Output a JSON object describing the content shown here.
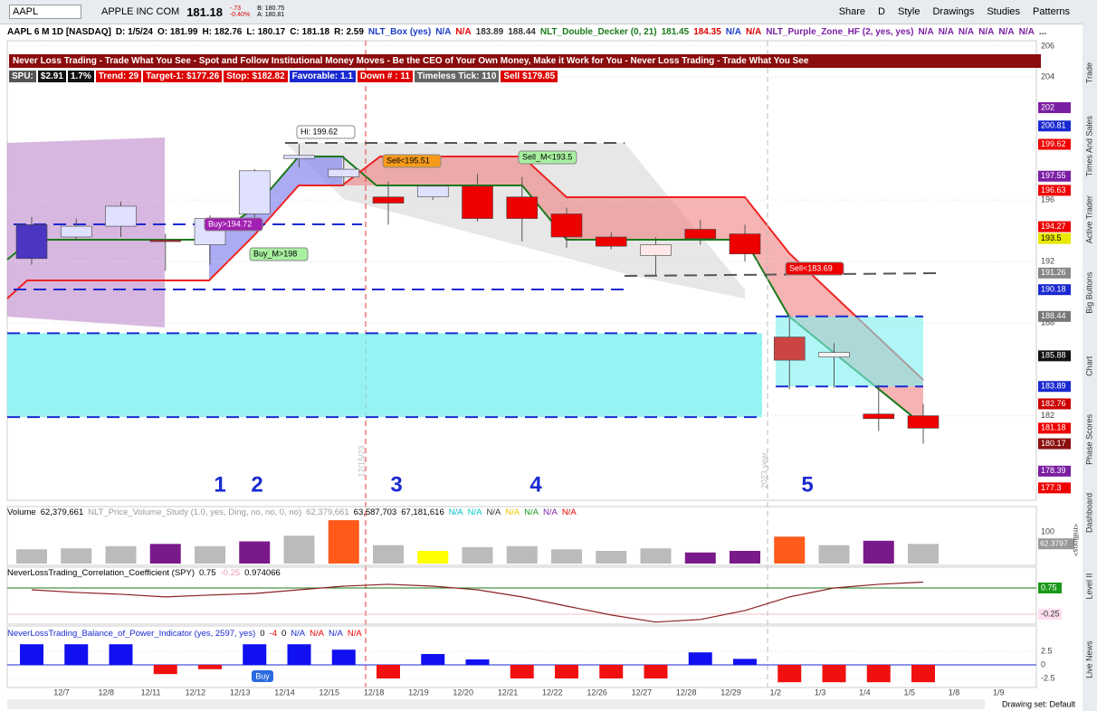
{
  "toolbar": {
    "symbol": "AAPL",
    "company": "APPLE INC COM",
    "last": "181.18",
    "change": "-.73",
    "change_pct": "-0.40%",
    "bid": "B: 180.75",
    "ask": "A: 180.81",
    "buttons": [
      "Share",
      "D",
      "Style",
      "Drawings",
      "Studies",
      "Patterns"
    ]
  },
  "info_bar": [
    {
      "text": "AAPL 6 M 1D [NASDAQ]",
      "color": "#000"
    },
    {
      "text": "D: 1/5/24",
      "color": "#000"
    },
    {
      "text": "O: 181.99",
      "color": "#000"
    },
    {
      "text": "H: 182.76",
      "color": "#000"
    },
    {
      "text": "L: 180.17",
      "color": "#000"
    },
    {
      "text": "C: 181.18",
      "color": "#000"
    },
    {
      "text": "R: 2.59",
      "color": "#000"
    },
    {
      "text": "NLT_Box (yes)",
      "color": "#1a3cc8"
    },
    {
      "text": "N/A",
      "color": "#1a3cc8"
    },
    {
      "text": "N/A",
      "color": "#d00"
    },
    {
      "text": "183.89",
      "color": "#333"
    },
    {
      "text": "188.44",
      "color": "#333"
    },
    {
      "text": "NLT_Double_Decker (0, 21)",
      "color": "#1a7a1a"
    },
    {
      "text": "181.45",
      "color": "#1a7a1a"
    },
    {
      "text": "184.35",
      "color": "#d00"
    },
    {
      "text": "N/A",
      "color": "#1a3cc8"
    },
    {
      "text": "N/A",
      "color": "#d00"
    },
    {
      "text": "NLT_Purple_Zone_HF (2, yes, yes)",
      "color": "#7b1fa2"
    },
    {
      "text": "N/A",
      "color": "#7b1fa2"
    },
    {
      "text": "N/A",
      "color": "#7b1fa2"
    },
    {
      "text": "N/A",
      "color": "#7b1fa2"
    },
    {
      "text": "N/A",
      "color": "#7b1fa2"
    },
    {
      "text": "N/A",
      "color": "#7b1fa2"
    },
    {
      "text": "N/A",
      "color": "#7b1fa2"
    },
    {
      "text": "...",
      "color": "#333"
    }
  ],
  "banner": "Never Loss Trading - Trade What You See - Spot and Follow Institutional Money Moves - Be the CEO of Your Own Money, Make it Work for You - Never Loss Trading - Trade What You See",
  "badges": [
    {
      "text": "SPU:",
      "bg": "#555"
    },
    {
      "text": "$2.91",
      "bg": "#111"
    },
    {
      "text": "1.7%",
      "bg": "#111"
    },
    {
      "text": "Trend: 29",
      "bg": "#d00"
    },
    {
      "text": "Target-1: $177.26",
      "bg": "#d00"
    },
    {
      "text": "Stop: $182.82",
      "bg": "#d00"
    },
    {
      "text": "Favorable: 1.1",
      "bg": "#1a2ad0"
    },
    {
      "text": "Down # : 11",
      "bg": "#d00"
    },
    {
      "text": "Timeless Tick: 110",
      "bg": "#666"
    },
    {
      "text": "Sell $179.85",
      "bg": "#d00"
    }
  ],
  "price_panel": {
    "ylim": [
      176.5,
      206.35
    ],
    "yticks": [
      206,
      204,
      196,
      192,
      188,
      182
    ],
    "tags": [
      {
        "value": 202,
        "color": "#7b1fa2"
      },
      {
        "value": 200.81,
        "color": "#1a2ad0"
      },
      {
        "value": 199.62,
        "color": "#e00"
      },
      {
        "value": 197.55,
        "color": "#7b1fa2"
      },
      {
        "value": 196.63,
        "color": "#e00"
      },
      {
        "value": 194.27,
        "color": "#e00"
      },
      {
        "value": 193.5,
        "color": "#e8e800"
      },
      {
        "value": 191.26,
        "color": "#888"
      },
      {
        "value": 190.18,
        "color": "#1a2ad0"
      },
      {
        "value": 188.44,
        "color": "#777"
      },
      {
        "value": 185.88,
        "color": "#111"
      },
      {
        "value": 183.89,
        "color": "#1a2ad0"
      },
      {
        "value": 182.76,
        "color": "#c00"
      },
      {
        "value": 181.18,
        "color": "#e00"
      },
      {
        "value": 180.17,
        "color": "#8b1010"
      },
      {
        "value": 178.39,
        "color": "#7b1fa2"
      },
      {
        "value": 177.3,
        "color": "#e00"
      }
    ],
    "candles": {
      "open": [
        194.4,
        193.6,
        194.3,
        193.4,
        193.1,
        195.1,
        198.7,
        197.5,
        196.2,
        196.2,
        196.9,
        196.2,
        195.1,
        193.6,
        192.4,
        194.1,
        193.8,
        187.1,
        186.1,
        182.1,
        181.99
      ],
      "high": [
        194.9,
        194.8,
        195.9,
        193.8,
        195.0,
        198.0,
        199.62,
        198.9,
        197.2,
        196.9,
        197.7,
        197.5,
        195.5,
        193.9,
        193.6,
        194.7,
        194.4,
        188.4,
        186.7,
        184.0,
        182.76
      ],
      "low": [
        191.8,
        193.4,
        193.6,
        191.4,
        191.8,
        194.5,
        198.1,
        196.9,
        194.4,
        196.0,
        194.6,
        193.3,
        192.9,
        192.8,
        191.1,
        193.1,
        192.0,
        183.7,
        183.8,
        181.0,
        180.17
      ],
      "close": [
        192.2,
        194.3,
        195.6,
        193.3,
        194.8,
        197.9,
        198.9,
        198.0,
        195.8,
        196.9,
        194.8,
        194.8,
        193.6,
        193.0,
        193.1,
        193.5,
        192.5,
        185.6,
        185.8,
        181.8,
        181.18
      ],
      "colors": [
        "#4a36c0",
        "#e0e0ff",
        "#e0e0ff",
        "#b22",
        "#e0e0ff",
        "#e0e0ff",
        "#e0e0ff",
        "#e0e0ff",
        "#e00",
        "#e0e0ff",
        "#e00",
        "#e00",
        "#e00",
        "#e00",
        "#ffe8e8",
        "#e00",
        "#e00",
        "#c44",
        "#f2f2f2",
        "#e00",
        "#e00"
      ]
    },
    "zones": [
      {
        "low": 181.9,
        "high": 187.35
      },
      {
        "low": 183.89,
        "high": 188.44
      }
    ],
    "x_labels": [
      "12/7",
      "12/8",
      "12/11",
      "12/12",
      "12/13",
      "12/14",
      "12/15",
      "12/18",
      "12/19",
      "12/20",
      "12/21",
      "12/22",
      "12/26",
      "12/27",
      "12/28",
      "12/29",
      "1/2",
      "1/3",
      "1/4",
      "1/5",
      "1/8",
      "1/9"
    ],
    "annotations": [
      "Hi: 199.62",
      "Sell<195.51",
      "Sell_M<193.5",
      "Buy>194.72",
      "Buy_M>198",
      "Sell<183.69"
    ],
    "numbers": [
      "1",
      "2",
      "3",
      "4",
      "5"
    ],
    "markers": [
      "12/15/23",
      "2023 year"
    ]
  },
  "volume_panel": {
    "header": [
      {
        "text": "Volume",
        "color": "#000"
      },
      {
        "text": "62,379,661",
        "color": "#000"
      },
      {
        "text": "NLT_Price_Volume_Study (1.0, yes, Ding, no, no, 0, no)",
        "color": "#999"
      },
      {
        "text": "62,379,661",
        "color": "#999"
      },
      {
        "text": "63,587,703",
        "color": "#000"
      },
      {
        "text": "67,181,616",
        "color": "#000"
      },
      {
        "text": "N/A",
        "color": "#0bc"
      },
      {
        "text": "N/A",
        "color": "#0cc"
      },
      {
        "text": "N/A",
        "color": "#333"
      },
      {
        "text": "N/A",
        "color": "#e8c800"
      },
      {
        "text": "N/A",
        "color": "#1a9a1a"
      },
      {
        "text": "N/A",
        "color": "#7b1fa2"
      },
      {
        "text": "N/A",
        "color": "#e00"
      }
    ],
    "values": [
      45,
      48,
      55,
      62,
      55,
      70,
      88,
      137,
      58,
      40,
      52,
      55,
      45,
      40,
      48,
      35,
      40,
      85,
      58,
      72,
      62
    ],
    "colors": [
      "#bbb",
      "#bbb",
      "#bbb",
      "#7a1a8a",
      "#bbb",
      "#7a1a8a",
      "#bbb",
      "#ff5a1a",
      "#bbb",
      "#ffff00",
      "#bbb",
      "#bbb",
      "#bbb",
      "#bbb",
      "#bbb",
      "#7a1a8a",
      "#7a1a8a",
      "#ff5a1a",
      "#bbb",
      "#7a1a8a",
      "#bbb"
    ],
    "yticks": [
      100
    ],
    "last": 62.3797,
    "unit": "<millions>"
  },
  "corr_panel": {
    "header": [
      {
        "text": "NeverLossTrading_Correlation_Coefficient (SPY)",
        "color": "#000"
      },
      {
        "text": "0.75",
        "color": "#000"
      },
      {
        "text": "-0.25",
        "color": "#e9b"
      },
      {
        "text": "0.974066",
        "color": "#000"
      }
    ],
    "values": [
      0.68,
      0.58,
      0.51,
      0.41,
      0.48,
      0.54,
      0.68,
      0.82,
      0.89,
      0.82,
      0.68,
      0.41,
      0.06,
      -0.28,
      -0.55,
      -0.45,
      -0.11,
      0.41,
      0.75,
      0.89,
      0.974066
    ],
    "levels": [
      0.75,
      -0.25
    ]
  },
  "bop_panel": {
    "header": [
      {
        "text": "NeverLossTrading_Balance_of_Power_Indicator (yes, 2597, yes)",
        "color": "#1a2ad0"
      },
      {
        "text": "0",
        "color": "#000"
      },
      {
        "text": "-4",
        "color": "#e00"
      },
      {
        "text": "0",
        "color": "#000"
      },
      {
        "text": "N/A",
        "color": "#1a2ad0"
      },
      {
        "text": "N/A",
        "color": "#e00"
      },
      {
        "text": "N/A",
        "color": "#1a2ad0"
      },
      {
        "text": "N/A",
        "color": "#e00"
      }
    ],
    "values": [
      3.8,
      3.8,
      3.8,
      -1.7,
      -0.8,
      3.8,
      3.8,
      2.8,
      -2.5,
      2,
      1,
      -2.5,
      -2.5,
      -2.5,
      -2.5,
      2.3,
      1.1,
      -3.2,
      -3.2,
      -3.2,
      -3.2
    ],
    "yticks": [
      2.5,
      0,
      -2.5
    ],
    "signal": "Buy"
  },
  "side_tabs": [
    "Trade",
    "Times And Sales",
    "Active Trader",
    "Big Buttons",
    "Chart",
    "Phase Scores",
    "Dashboard",
    "Level II",
    "Live News"
  ],
  "footer": "Drawing set: Default"
}
